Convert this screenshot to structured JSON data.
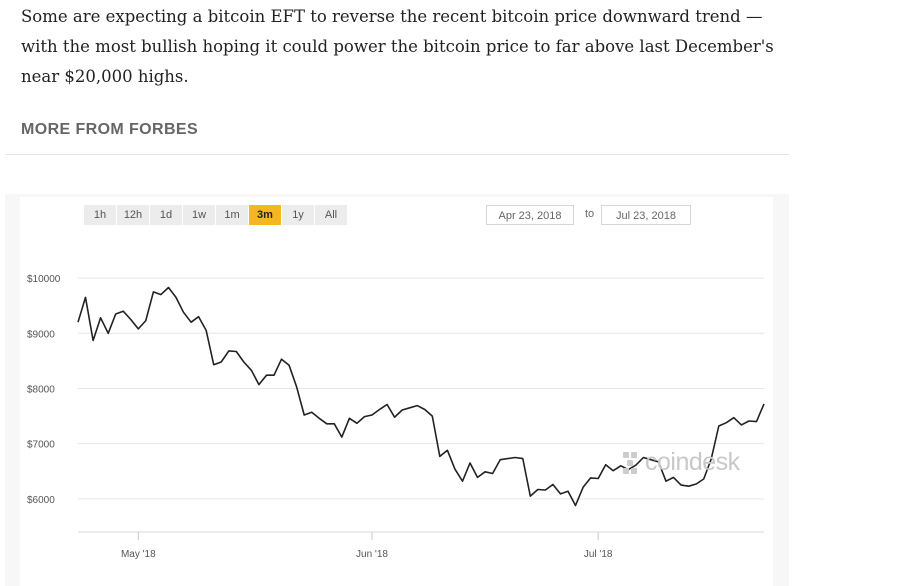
{
  "article": {
    "paragraph": "Some are expecting a bitcoin EFT to reverse the recent bitcoin price downward trend — with the most bullish hoping it could power the bitcoin price to far above last December's near $20,000 highs.",
    "section_heading": "MORE FROM FORBES"
  },
  "controls": {
    "range_buttons": [
      "1h",
      "12h",
      "1d",
      "1w",
      "1m",
      "3m",
      "1y",
      "All"
    ],
    "active_range": "3m",
    "date_from": "Apr 23, 2018",
    "date_separator": "to",
    "date_to": "Jul 23, 2018"
  },
  "watermark": {
    "brand": "coindesk",
    "icon": "coindesk-logo-icon"
  },
  "colors": {
    "active_button": "#f3b722",
    "line": "#222222",
    "grid": "#e6e6e6"
  },
  "chart_data": {
    "type": "line",
    "title": "",
    "xlabel": "",
    "ylabel": "",
    "x_ticks": [
      "May '18",
      "Jun '18",
      "Jul '18"
    ],
    "x_tick_dates": [
      "2018-05-01",
      "2018-06-01",
      "2018-07-01"
    ],
    "y_ticks": [
      10000,
      9000,
      8000,
      7000,
      6000
    ],
    "y_tick_labels": [
      "$10000",
      "$9000",
      "$8000",
      "$7000",
      "$6000"
    ],
    "ylim": [
      5400,
      10400
    ],
    "xlim": [
      "2018-04-23",
      "2018-07-23"
    ],
    "grid": true,
    "series": [
      {
        "values": [
          [
            "2018-04-23",
            9200
          ],
          [
            "2018-04-24",
            9650
          ],
          [
            "2018-04-25",
            8870
          ],
          [
            "2018-04-26",
            9280
          ],
          [
            "2018-04-27",
            9000
          ],
          [
            "2018-04-28",
            9350
          ],
          [
            "2018-04-29",
            9400
          ],
          [
            "2018-04-30",
            9250
          ],
          [
            "2018-05-01",
            9080
          ],
          [
            "2018-05-02",
            9230
          ],
          [
            "2018-05-03",
            9750
          ],
          [
            "2018-05-04",
            9700
          ],
          [
            "2018-05-05",
            9830
          ],
          [
            "2018-05-06",
            9650
          ],
          [
            "2018-05-07",
            9380
          ],
          [
            "2018-05-08",
            9200
          ],
          [
            "2018-05-09",
            9300
          ],
          [
            "2018-05-10",
            9050
          ],
          [
            "2018-05-11",
            8430
          ],
          [
            "2018-05-12",
            8480
          ],
          [
            "2018-05-13",
            8680
          ],
          [
            "2018-05-14",
            8670
          ],
          [
            "2018-05-15",
            8480
          ],
          [
            "2018-05-16",
            8330
          ],
          [
            "2018-05-17",
            8070
          ],
          [
            "2018-05-18",
            8240
          ],
          [
            "2018-05-19",
            8240
          ],
          [
            "2018-05-20",
            8530
          ],
          [
            "2018-05-21",
            8420
          ],
          [
            "2018-05-22",
            8030
          ],
          [
            "2018-05-23",
            7520
          ],
          [
            "2018-05-24",
            7570
          ],
          [
            "2018-05-25",
            7460
          ],
          [
            "2018-05-26",
            7360
          ],
          [
            "2018-05-27",
            7360
          ],
          [
            "2018-05-28",
            7120
          ],
          [
            "2018-05-29",
            7460
          ],
          [
            "2018-05-30",
            7370
          ],
          [
            "2018-05-31",
            7490
          ],
          [
            "2018-06-01",
            7520
          ],
          [
            "2018-06-02",
            7620
          ],
          [
            "2018-06-03",
            7710
          ],
          [
            "2018-06-04",
            7480
          ],
          [
            "2018-06-05",
            7610
          ],
          [
            "2018-06-06",
            7650
          ],
          [
            "2018-06-07",
            7690
          ],
          [
            "2018-06-08",
            7620
          ],
          [
            "2018-06-09",
            7500
          ],
          [
            "2018-06-10",
            6770
          ],
          [
            "2018-06-11",
            6880
          ],
          [
            "2018-06-12",
            6540
          ],
          [
            "2018-06-13",
            6320
          ],
          [
            "2018-06-14",
            6650
          ],
          [
            "2018-06-15",
            6390
          ],
          [
            "2018-06-16",
            6490
          ],
          [
            "2018-06-17",
            6460
          ],
          [
            "2018-06-18",
            6710
          ],
          [
            "2018-06-19",
            6730
          ],
          [
            "2018-06-20",
            6750
          ],
          [
            "2018-06-21",
            6730
          ],
          [
            "2018-06-22",
            6050
          ],
          [
            "2018-06-23",
            6170
          ],
          [
            "2018-06-24",
            6160
          ],
          [
            "2018-06-25",
            6260
          ],
          [
            "2018-06-26",
            6090
          ],
          [
            "2018-06-27",
            6140
          ],
          [
            "2018-06-28",
            5880
          ],
          [
            "2018-06-29",
            6210
          ],
          [
            "2018-06-30",
            6380
          ],
          [
            "2018-07-01",
            6370
          ],
          [
            "2018-07-02",
            6620
          ],
          [
            "2018-07-03",
            6510
          ],
          [
            "2018-07-04",
            6600
          ],
          [
            "2018-07-05",
            6530
          ],
          [
            "2018-07-06",
            6610
          ],
          [
            "2018-07-07",
            6750
          ],
          [
            "2018-07-08",
            6710
          ],
          [
            "2018-07-09",
            6670
          ],
          [
            "2018-07-10",
            6320
          ],
          [
            "2018-07-11",
            6390
          ],
          [
            "2018-07-12",
            6250
          ],
          [
            "2018-07-13",
            6230
          ],
          [
            "2018-07-14",
            6270
          ],
          [
            "2018-07-15",
            6360
          ],
          [
            "2018-07-16",
            6720
          ],
          [
            "2018-07-17",
            7320
          ],
          [
            "2018-07-18",
            7380
          ],
          [
            "2018-07-19",
            7470
          ],
          [
            "2018-07-20",
            7340
          ],
          [
            "2018-07-21",
            7410
          ],
          [
            "2018-07-22",
            7400
          ],
          [
            "2018-07-23",
            7720
          ]
        ]
      }
    ]
  }
}
